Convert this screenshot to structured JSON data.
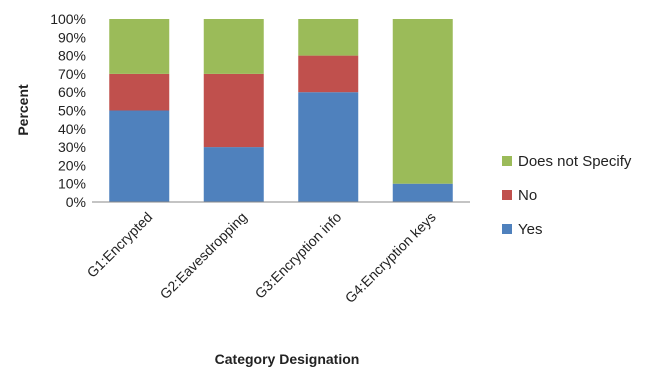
{
  "chart_data": {
    "type": "bar",
    "stacked": true,
    "percent": true,
    "categories": [
      "G1:Encrypted",
      "G2:Eavesdropping",
      "G3:Encryption info",
      "G4:Encryption keys"
    ],
    "series": [
      {
        "name": "Yes",
        "values": [
          50,
          30,
          60,
          10
        ],
        "color": "#4F81BD"
      },
      {
        "name": "No",
        "values": [
          20,
          40,
          20,
          0
        ],
        "color": "#C0504D"
      },
      {
        "name": "Does not Specify",
        "values": [
          30,
          30,
          20,
          90
        ],
        "color": "#9BBB59"
      }
    ],
    "xlabel": "Category Designation",
    "ylabel": "Percent",
    "ylim": [
      0,
      100
    ],
    "yticks": [
      "0%",
      "10%",
      "20%",
      "30%",
      "40%",
      "50%",
      "60%",
      "70%",
      "80%",
      "90%",
      "100%"
    ],
    "grid": false,
    "legend_position": "right"
  }
}
